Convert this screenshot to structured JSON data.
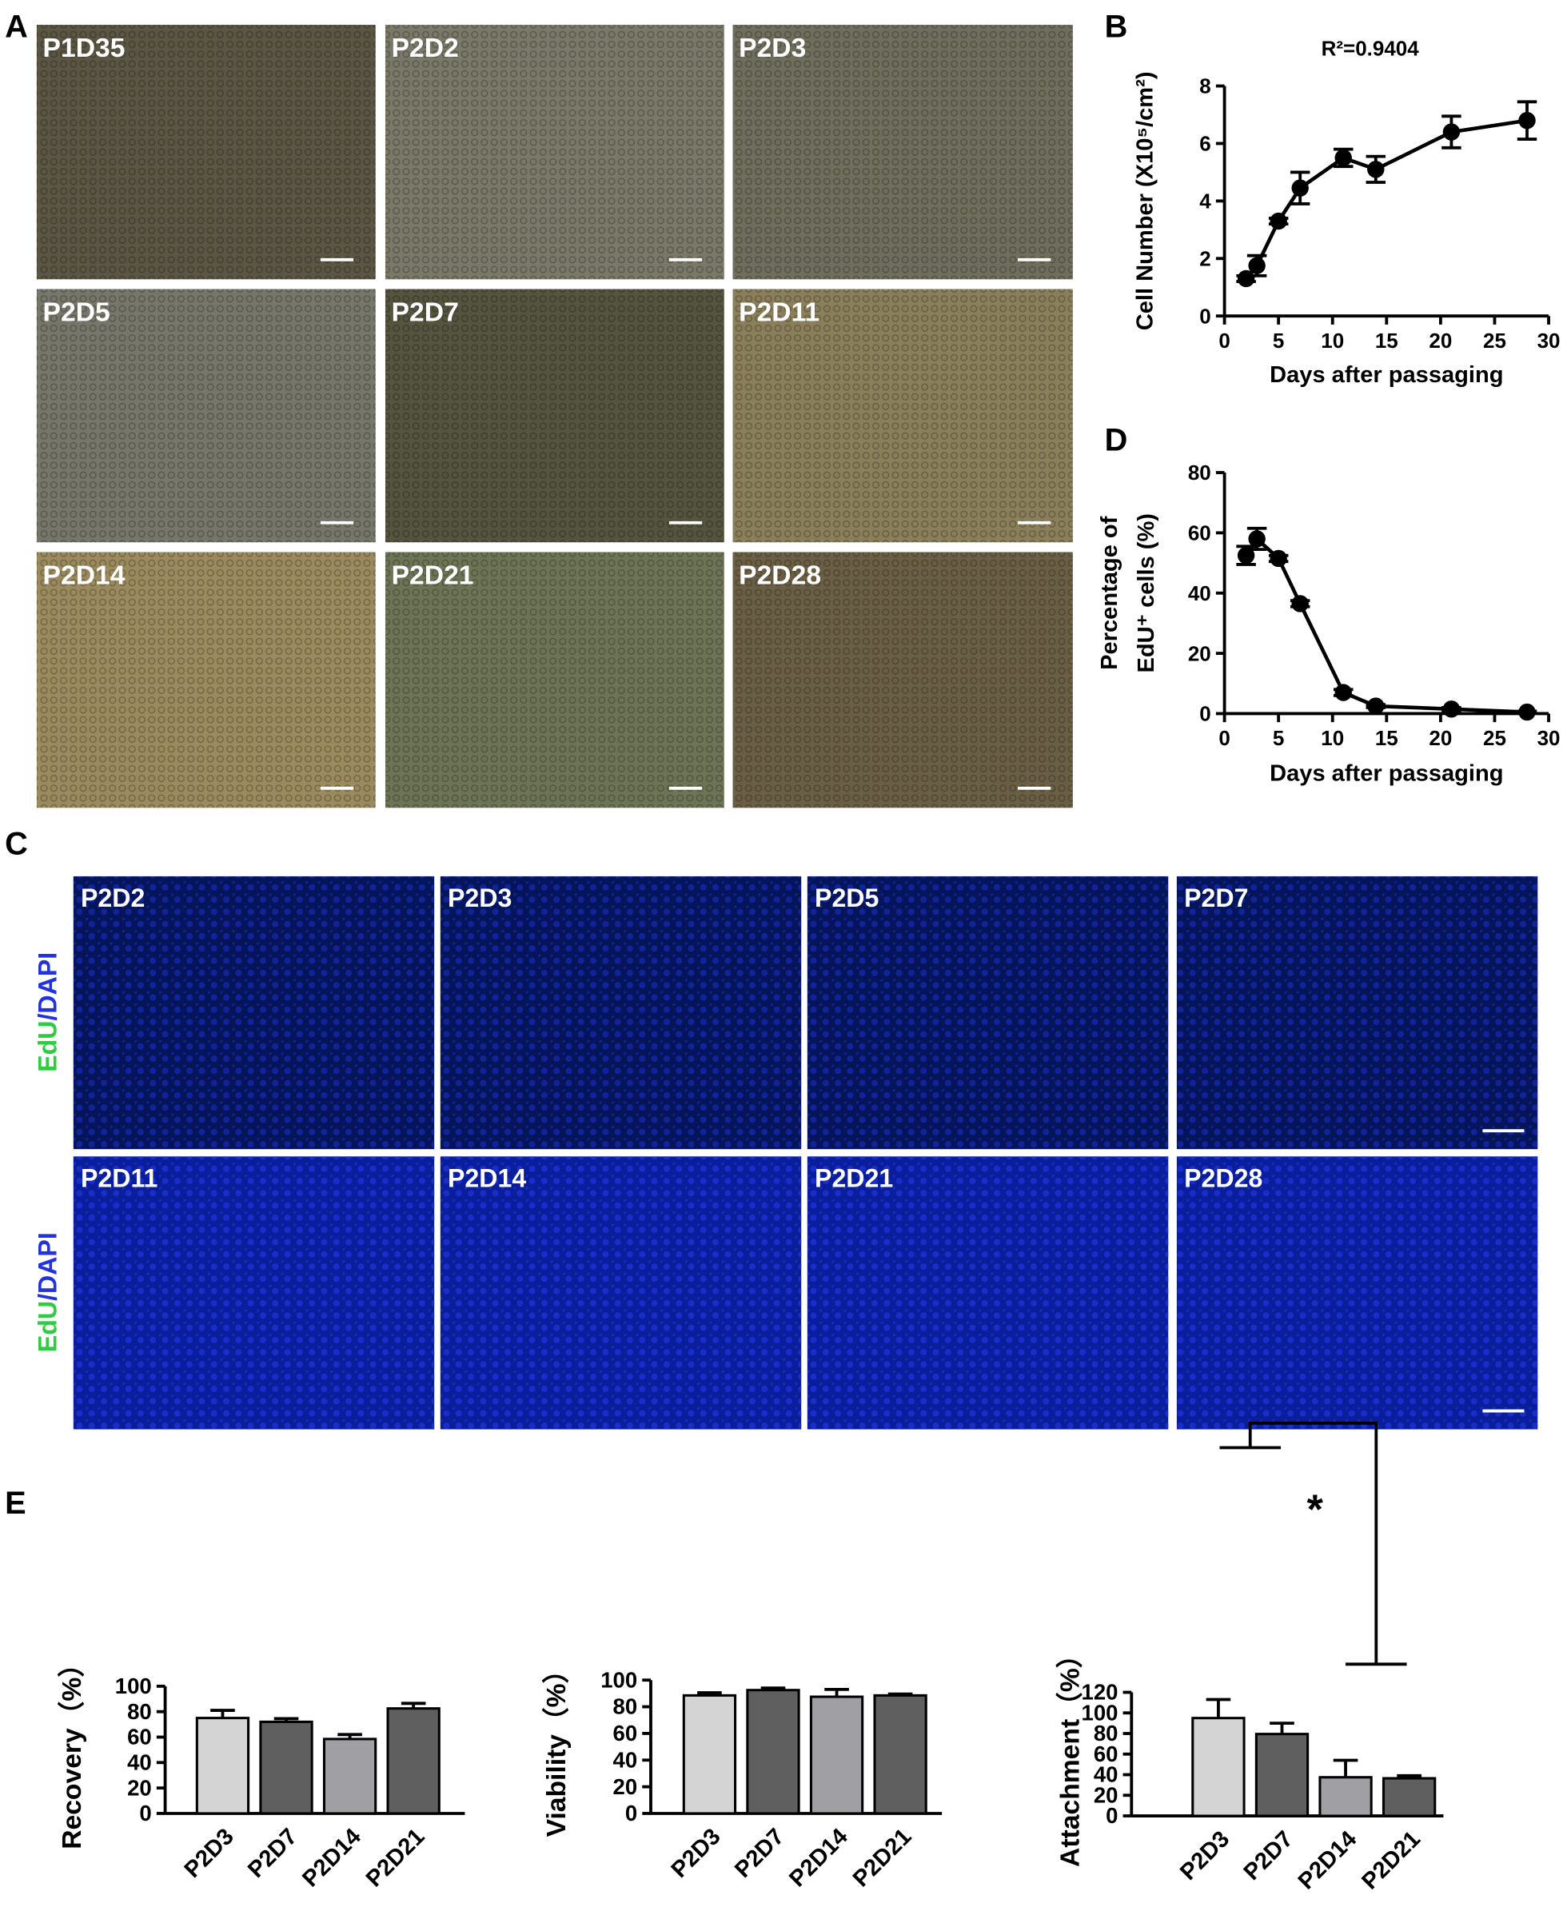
{
  "figure": {
    "panel_letters": [
      "A",
      "B",
      "C",
      "D",
      "E"
    ],
    "a_labels": [
      "P1D35",
      "P2D2",
      "P2D3",
      "P2D5",
      "P2D7",
      "P2D11",
      "P2D14",
      "P2D21",
      "P2D28"
    ],
    "c_labels": [
      "P2D2",
      "P2D3",
      "P2D5",
      "P2D7",
      "P2D11",
      "P2D14",
      "P2D21",
      "P2D28"
    ],
    "c_side_label": [
      "EdU",
      "/DAPI"
    ]
  },
  "chart_data": [
    {
      "type": "line",
      "title": "R²=0.9404",
      "xlabel": "Days after passaging",
      "ylabel": [
        "Cell Number (X10⁵/cm²)"
      ],
      "x": [
        2,
        3,
        5,
        7,
        11,
        14,
        21,
        28
      ],
      "values": [
        1.3,
        1.75,
        3.3,
        4.45,
        5.5,
        5.1,
        6.4,
        6.8
      ],
      "errors": [
        0.1,
        0.35,
        0.1,
        0.55,
        0.3,
        0.45,
        0.55,
        0.65
      ],
      "color": "#000000",
      "xlim": [
        0,
        30
      ],
      "xticks": [
        0,
        5,
        10,
        15,
        20,
        25,
        30
      ],
      "ylim": [
        0,
        8
      ],
      "yticks": [
        0,
        2,
        4,
        6,
        8
      ]
    },
    {
      "type": "line",
      "xlabel": "Days after passaging",
      "ylabel": [
        "Percentage of",
        "EdU⁺ cells (%)"
      ],
      "x": [
        2,
        3,
        5,
        7,
        11,
        14,
        21,
        28
      ],
      "values": [
        52.5,
        58,
        51.5,
        36.5,
        7,
        2.5,
        1.5,
        0.5
      ],
      "errors": [
        3,
        3.5,
        1,
        1,
        1,
        0.5,
        0.5,
        0.3
      ],
      "color": "#000000",
      "xlim": [
        0,
        30
      ],
      "xticks": [
        0,
        5,
        10,
        15,
        20,
        25,
        30
      ],
      "ylim": [
        0,
        80
      ],
      "yticks": [
        0,
        20,
        40,
        60,
        80
      ]
    },
    {
      "type": "bar",
      "ylabel": [
        "Recovery（%）"
      ],
      "categories": [
        "P2D3",
        "P2D7",
        "P2D14",
        "P2D21"
      ],
      "values": [
        75,
        72,
        58.5,
        82.5
      ],
      "errors": [
        6,
        2.5,
        3.5,
        4
      ],
      "colors": [
        "#d4d4d4",
        "#5f5f5f",
        "#a0a0a4",
        "#5f5f5f"
      ],
      "ylim": [
        0,
        100
      ],
      "yticks": [
        0,
        20,
        40,
        60,
        80,
        100
      ]
    },
    {
      "type": "bar",
      "ylabel": [
        "Viability（%）"
      ],
      "categories": [
        "P2D3",
        "P2D7",
        "P2D14",
        "P2D21"
      ],
      "values": [
        88.5,
        92.5,
        87.5,
        88.5
      ],
      "errors": [
        2,
        1.5,
        5.5,
        1
      ],
      "colors": [
        "#d4d4d4",
        "#5f5f5f",
        "#a0a0a4",
        "#5f5f5f"
      ],
      "ylim": [
        0,
        100
      ],
      "yticks": [
        0,
        20,
        40,
        60,
        80,
        100
      ]
    },
    {
      "type": "bar",
      "ylabel": [
        "Attachment（%）"
      ],
      "categories": [
        "P2D3",
        "P2D7",
        "P2D14",
        "P2D21"
      ],
      "values": [
        95,
        79.5,
        37.5,
        36.5
      ],
      "errors": [
        18,
        10.5,
        16.5,
        2.5
      ],
      "colors": [
        "#d4d4d4",
        "#5f5f5f",
        "#a0a0a4",
        "#5f5f5f"
      ],
      "ylim": [
        0,
        120
      ],
      "yticks": [
        0,
        20,
        40,
        60,
        80,
        100,
        120
      ],
      "annotation": "*"
    }
  ]
}
